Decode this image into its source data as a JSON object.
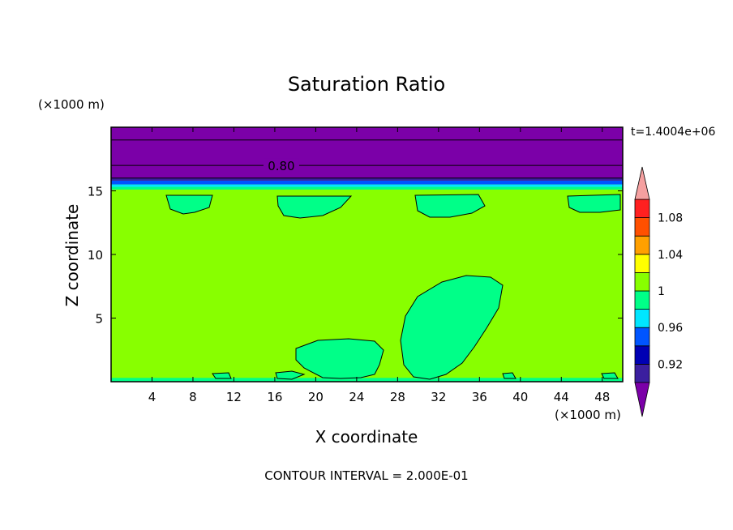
{
  "chart_data": {
    "type": "contour",
    "title": "Saturation Ratio",
    "xlabel": "X coordinate",
    "ylabel": "Z coordinate",
    "x_unit": "(×1000 m)",
    "y_unit": "(×1000 m)",
    "time_label": "t=1.4004e+06",
    "footer": "CONTOUR INTERVAL = 2.000E-01",
    "xlim": [
      0,
      50
    ],
    "ylim": [
      0,
      20
    ],
    "x_ticks": [
      4,
      8,
      12,
      16,
      20,
      24,
      28,
      32,
      36,
      40,
      44,
      48
    ],
    "y_ticks": [
      5,
      10,
      15
    ],
    "contour_labels": [
      {
        "x": 16,
        "y": 17,
        "text": "0.80"
      }
    ],
    "colorbar": {
      "levels": [
        0.9,
        0.92,
        0.94,
        0.96,
        0.98,
        1.0,
        1.02,
        1.04,
        1.06,
        1.08,
        1.1
      ],
      "colors": [
        "#7b00a8",
        "#3b1f9f",
        "#0000b4",
        "#0055ff",
        "#00e6ff",
        "#00ff88",
        "#88ff00",
        "#ffff00",
        "#ffa000",
        "#ff5000",
        "#ff2020",
        "#f5a0a0"
      ],
      "tick_labels": [
        "0.92",
        "0.96",
        "1",
        "1.04",
        "1.08"
      ],
      "tick_values": [
        0.92,
        0.96,
        1.0,
        1.04,
        1.08
      ]
    },
    "regions": {
      "background_value": 1.01,
      "upper_layer": {
        "z_min": 16,
        "z_max": 20,
        "value": 0.8
      },
      "tropopause_bands": [
        {
          "z_min": 15.8,
          "z_max": 16.0,
          "value": 0.91
        },
        {
          "z_min": 15.5,
          "z_max": 15.8,
          "value": 0.94
        },
        {
          "z_min": 15.3,
          "z_max": 15.5,
          "value": 0.97
        },
        {
          "z_min": 15.1,
          "z_max": 15.3,
          "value": 0.99
        }
      ],
      "surface_strip": {
        "z_min": 0,
        "z_max": 0.3,
        "value": 0.99
      },
      "moist_patches_value": 0.99
    }
  }
}
